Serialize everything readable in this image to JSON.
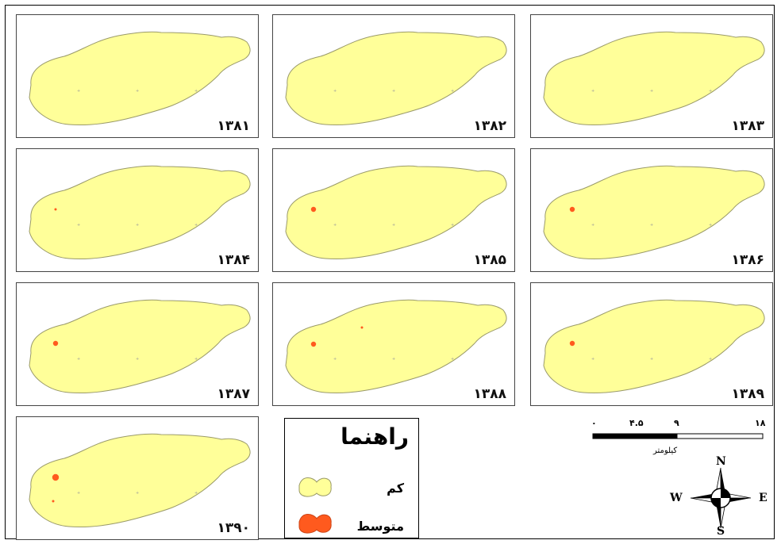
{
  "panels": [
    {
      "year": "۱۳۸۱",
      "hotspots": []
    },
    {
      "year": "۱۳۸۲",
      "hotspots": []
    },
    {
      "year": "۱۳۸۳",
      "hotspots": []
    },
    {
      "year": "۱۳۸۴",
      "hotspots": [
        {
          "r": "tiny"
        }
      ]
    },
    {
      "year": "۱۳۸۵",
      "hotspots": [
        {
          "r": "small"
        }
      ]
    },
    {
      "year": "۱۳۸۶",
      "hotspots": [
        {
          "r": "small"
        }
      ]
    },
    {
      "year": "۱۳۸۷",
      "hotspots": [
        {
          "r": "small"
        }
      ]
    },
    {
      "year": "۱۳۸۸",
      "hotspots": [
        {
          "r": "small"
        },
        {
          "r": "tiny"
        }
      ]
    },
    {
      "year": "۱۳۸۹",
      "hotspots": [
        {
          "r": "small"
        }
      ]
    },
    {
      "year": "۱۳۹۰",
      "hotspots": [
        {
          "r": "medium"
        },
        {
          "r": "tiny"
        }
      ]
    }
  ],
  "legend": {
    "title": "راهنما",
    "items": [
      {
        "label": "کم",
        "color": "#ffff99"
      },
      {
        "label": "متوسط",
        "color": "#ff5a1e"
      }
    ]
  },
  "scale_bar": {
    "ticks": [
      "۰",
      "۴.۵",
      "۹",
      "۱۸"
    ],
    "unit": "کیلومتر"
  },
  "compass": {
    "n": "N",
    "s": "S",
    "e": "E",
    "w": "W"
  },
  "colors": {
    "low": "#ffff99",
    "medium": "#ff5a1e",
    "outline": "#9a9a6a"
  }
}
